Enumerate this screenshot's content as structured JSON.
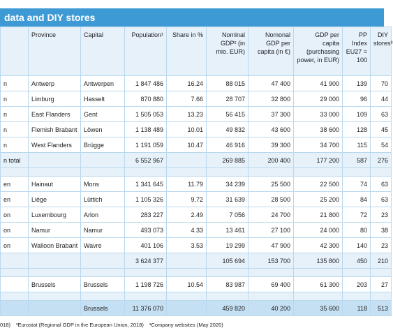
{
  "header": {
    "title": "data and DIY stores"
  },
  "table": {
    "columns": [
      "",
      "Province",
      "Capital",
      "Population¹",
      "Share in %",
      "Nominal GDP² (in mio. EUR)",
      "Nomonal GDP per capita (in €)",
      "GDP per capita (purchasing power, in EUR)",
      "PP Index EU27 = 100",
      "DIY stores³"
    ],
    "rows": [
      [
        "n",
        "Antwerp",
        "Antwerpen",
        "1 847 486",
        "16.24",
        "88 015",
        "47 400",
        "41 900",
        "139",
        "70"
      ],
      [
        "n",
        "Limburg",
        "Hasselt",
        "870 880",
        "7.66",
        "28 707",
        "32 800",
        "29 000",
        "96",
        "44"
      ],
      [
        "n",
        "East Flanders",
        "Gent",
        "1 505 053",
        "13.23",
        "56 415",
        "37 300",
        "33 000",
        "109",
        "63"
      ],
      [
        "n",
        "Flemish Brabant",
        "Löwen",
        "1 138 489",
        "10.01",
        "49 832",
        "43 600",
        "38 600",
        "128",
        "45"
      ],
      [
        "n",
        "West Flanders",
        "Brügge",
        "1 191 059",
        "10.47",
        "46 916",
        "39 300",
        "34 700",
        "115",
        "54"
      ],
      [
        "n total",
        null,
        null,
        "6 552 967",
        null,
        "269 885",
        "200 400",
        "177 200",
        "587",
        "276"
      ],
      null,
      [
        "en",
        "Hainaut",
        "Mons",
        "1 341 645",
        "11.79",
        "34 239",
        "25 500",
        "22 500",
        "74",
        "63"
      ],
      [
        "en",
        "Liège",
        "Lüttich",
        "1 105 326",
        "9.72",
        "31 639",
        "28 500",
        "25 200",
        "84",
        "63"
      ],
      [
        "on",
        "Luxembourg",
        "Arlon",
        "283 227",
        "2.49",
        "7 056",
        "24 700",
        "21 800",
        "72",
        "23"
      ],
      [
        "on",
        "Namur",
        "Namur",
        "493 073",
        "4.33",
        "13 461",
        "27 100",
        "24 000",
        "80",
        "38"
      ],
      [
        "on",
        "Walloon Brabant",
        "Wavre",
        "401 106",
        "3.53",
        "19 299",
        "47 900",
        "42 300",
        "140",
        "23"
      ],
      [
        null,
        null,
        null,
        "3 624 377",
        null,
        "105 694",
        "153 700",
        "135 800",
        "450",
        "210"
      ],
      null,
      [
        null,
        "Brussels",
        "Brussels",
        "1 198 726",
        "10.54",
        "83 987",
        "69 400",
        "61 300",
        "203",
        "27"
      ],
      null,
      [
        null,
        null,
        "Brussels",
        "11 376 070",
        null,
        "459 820",
        "40 200",
        "35 600",
        "118",
        "513"
      ]
    ]
  },
  "footer": {
    "notes": [
      "018)",
      "²Eurostat (Regional GDP in the European Union, 2018)",
      "³Company websites (May 2020)"
    ]
  }
}
